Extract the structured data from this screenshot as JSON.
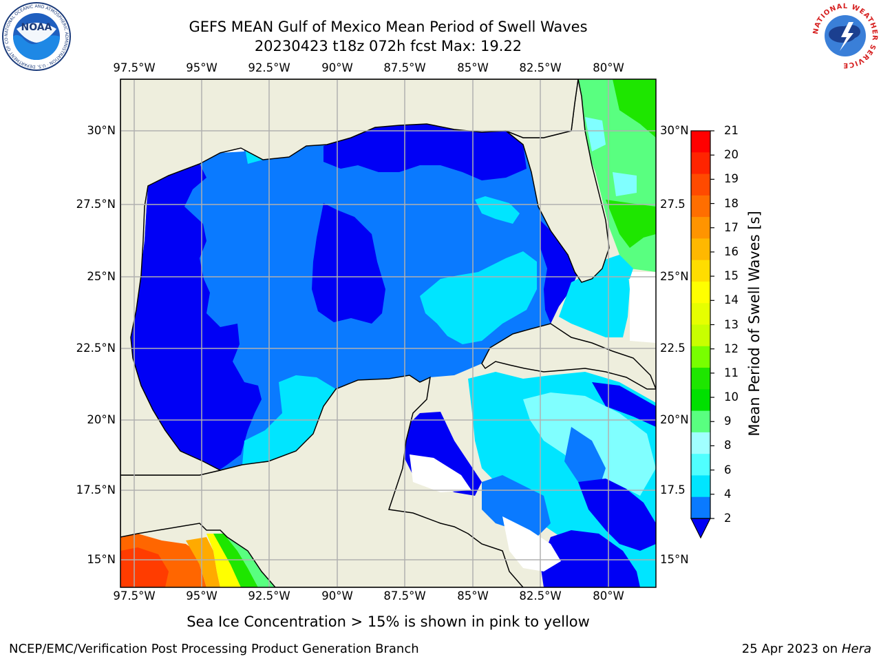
{
  "title": {
    "line1": "GEFS MEAN Gulf of Mexico Mean Period of Swell Waves",
    "line2": "20230423 t18z 072h fcst   Max: 19.22"
  },
  "map": {
    "lon_ticks": [
      "97.5°W",
      "95°W",
      "92.5°W",
      "90°W",
      "87.5°W",
      "85°W",
      "82.5°W",
      "80°W"
    ],
    "lat_ticks_left": [
      "30°N",
      "27.5°N",
      "25°N",
      "22.5°N",
      "20°N",
      "17.5°N",
      "15°N"
    ],
    "lat_ticks_right": [
      "30°N",
      "27.5",
      "25°N",
      "22.5",
      "20°N",
      "17.5",
      "15°N"
    ],
    "land_color": "#eeeedd",
    "ocean_field_colors": [
      "#0000f5",
      "#0a7aff",
      "#00e5ff",
      "#80ffff",
      "#59ff80",
      "#1ee600",
      "#ff6600"
    ]
  },
  "colorbar": {
    "label": "Mean Period of Swell Waves [s]",
    "ticks": [
      "21",
      "20",
      "19",
      "18",
      "17",
      "16",
      "15",
      "14",
      "13",
      "12",
      "11",
      "10",
      "9",
      "8",
      "6",
      "4",
      "2"
    ],
    "colors": [
      "#ff0000",
      "#ff2400",
      "#ff4a00",
      "#ff6e00",
      "#ff9400",
      "#ffb800",
      "#ffdd00",
      "#ffff00",
      "#e6ff00",
      "#c8ff00",
      "#78ff00",
      "#1ee600",
      "#00e000",
      "#59ff80",
      "#a0ffff",
      "#50ffff",
      "#00e5ff",
      "#0a7aff"
    ],
    "extend_color": "#0000f5"
  },
  "footer": {
    "note": "Sea Ice Concentration > 15% is shown in pink to yellow",
    "credit": "NCEP/EMC/Verification Post Processing Product Generation Branch",
    "date": "25 Apr 2023 on",
    "machine": "Hera"
  },
  "logos": {
    "noaa": {
      "text": "NOAA",
      "ring_text": "NATIONAL OCEANIC AND ATMOSPHERIC ADMINISTRATION · U.S. DEPARTMENT OF COMMERCE"
    },
    "nws": {
      "ring_text": "NATIONAL WEATHER SERVICE"
    }
  }
}
